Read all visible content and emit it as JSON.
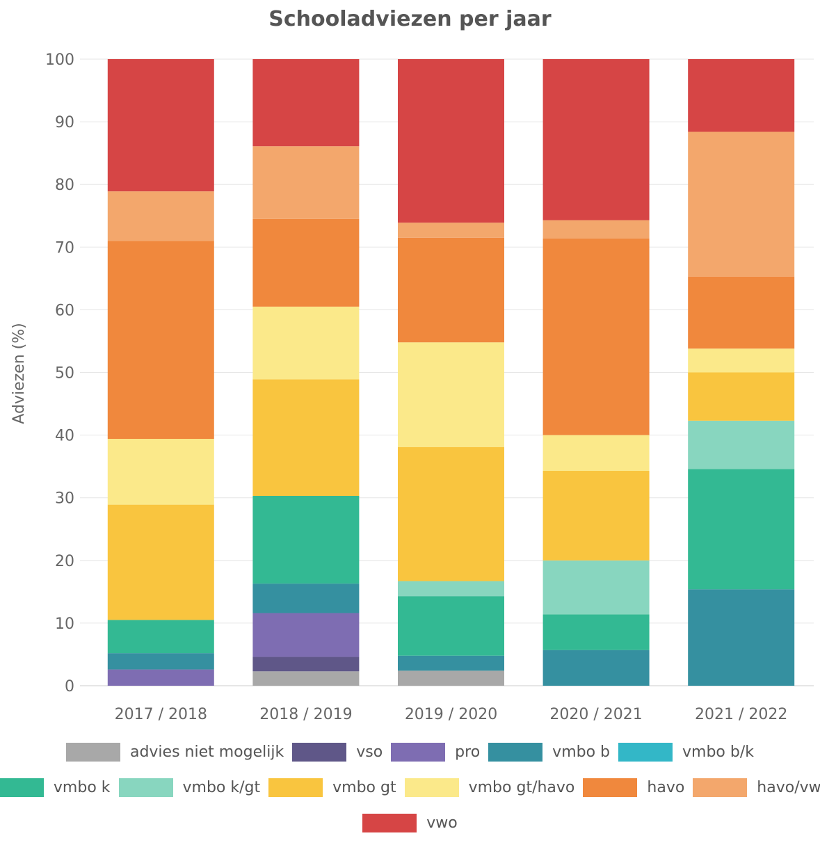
{
  "chart_data": {
    "type": "bar",
    "stacked": true,
    "title": "Schooladviezen per jaar",
    "ylabel": "Adviezen (%)",
    "xlabel": "",
    "ylim": [
      0,
      100
    ],
    "yticks": [
      0,
      10,
      20,
      30,
      40,
      50,
      60,
      70,
      80,
      90,
      100
    ],
    "grid": true,
    "legend_position": "bottom",
    "categories": [
      "2017 / 2018",
      "2018 / 2019",
      "2019 / 2020",
      "2020 / 2021",
      "2021 / 2022"
    ],
    "series": [
      {
        "name": "advies niet mogelijk",
        "color": "#A8A8A8",
        "values": [
          0,
          2.3,
          2.4,
          0,
          0
        ]
      },
      {
        "name": "vso",
        "color": "#5F5788",
        "values": [
          0,
          2.3,
          0,
          0,
          0
        ]
      },
      {
        "name": "pro",
        "color": "#7E6DB2",
        "values": [
          2.6,
          7.0,
          0,
          0,
          0
        ]
      },
      {
        "name": "vmbo b",
        "color": "#3590A0",
        "values": [
          2.6,
          4.7,
          2.4,
          5.7,
          15.4
        ]
      },
      {
        "name": "vmbo b/k",
        "color": "#33B7C7",
        "values": [
          0,
          0,
          0,
          0,
          0
        ]
      },
      {
        "name": "vmbo k",
        "color": "#33B993",
        "values": [
          5.3,
          14.0,
          9.5,
          5.7,
          19.2
        ]
      },
      {
        "name": "vmbo k/gt",
        "color": "#88D6BF",
        "values": [
          0,
          0,
          2.4,
          8.6,
          7.7
        ]
      },
      {
        "name": "vmbo gt",
        "color": "#F9C53F",
        "values": [
          18.4,
          18.6,
          21.4,
          14.3,
          7.7
        ]
      },
      {
        "name": "vmbo gt/havo",
        "color": "#FBE98A",
        "values": [
          10.5,
          11.6,
          16.7,
          5.7,
          3.8
        ]
      },
      {
        "name": "havo",
        "color": "#F0883D",
        "values": [
          31.6,
          14.0,
          16.7,
          31.4,
          11.5
        ]
      },
      {
        "name": "havo/vwo",
        "color": "#F3A76C",
        "values": [
          7.9,
          11.6,
          2.4,
          2.9,
          23.1
        ]
      },
      {
        "name": "vwo",
        "color": "#D64545",
        "values": [
          21.1,
          13.9,
          26.1,
          25.7,
          11.6
        ]
      }
    ]
  }
}
